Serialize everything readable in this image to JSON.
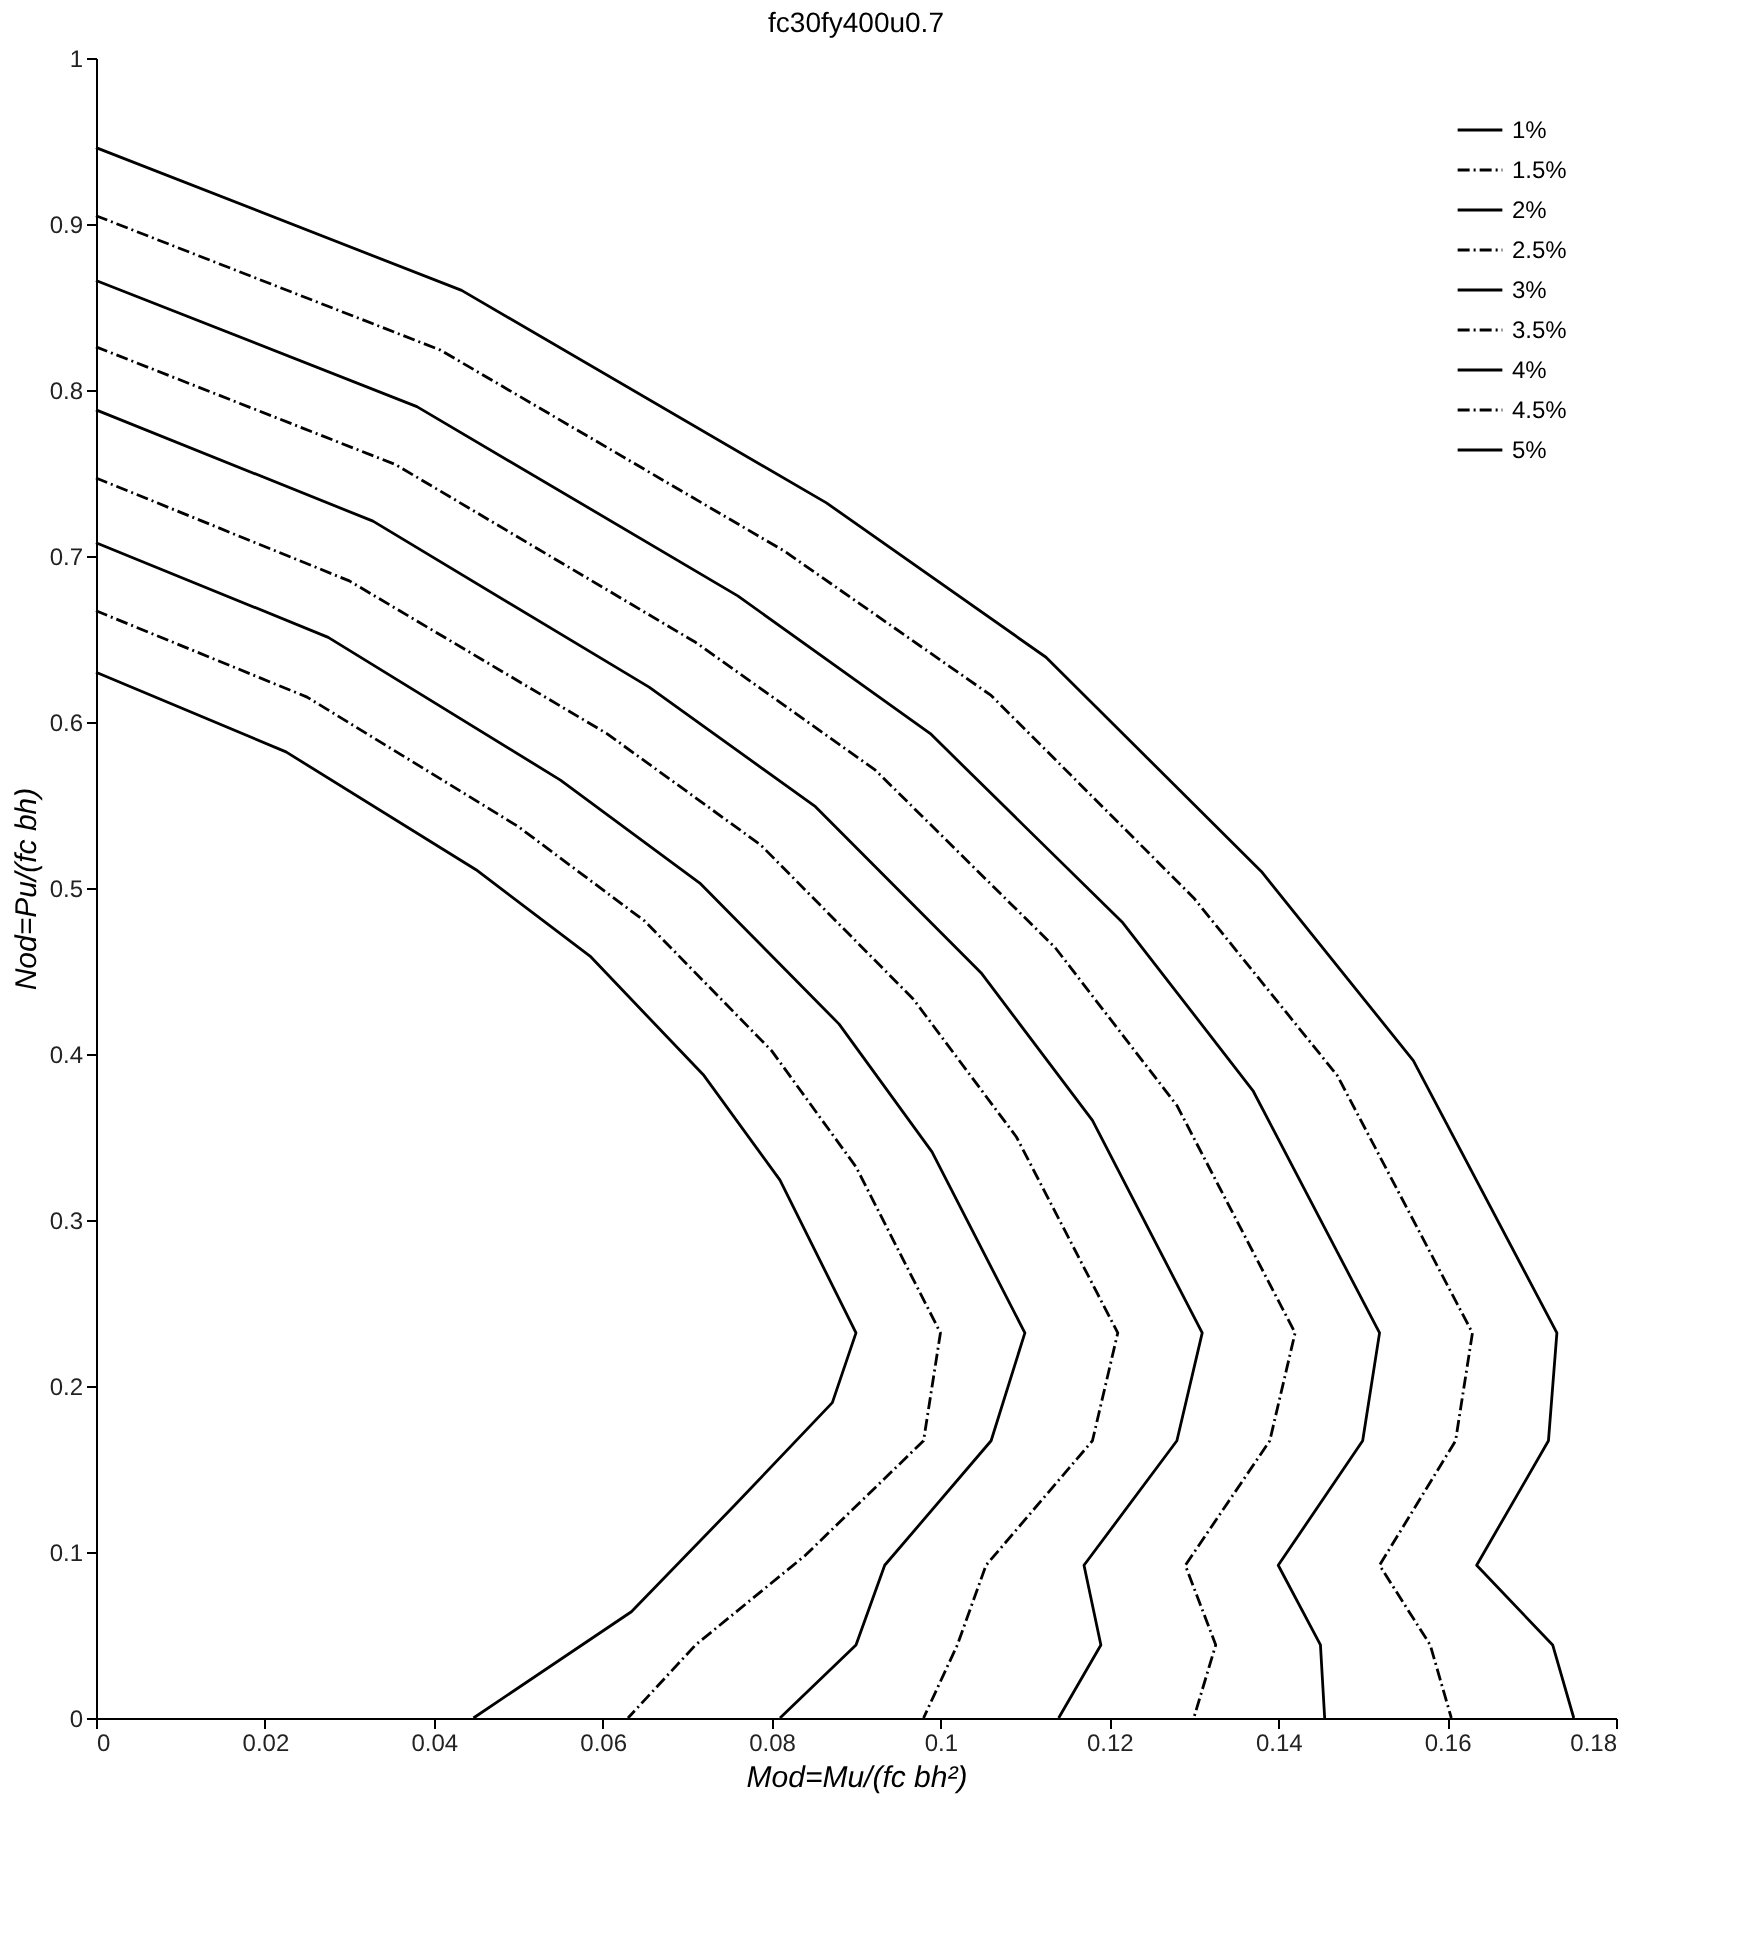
{
  "chart_data": {
    "type": "line",
    "title": "fc30fy400u0.7",
    "xlabel": "Mod=Mu/(fc bh²)",
    "ylabel": "Nod=Pu/(fc bh)",
    "xlim": [
      0,
      0.18
    ],
    "xticks": [
      0,
      0.02,
      0.04,
      0.06,
      0.08,
      0.1,
      0.12,
      0.14,
      0.16,
      0.18
    ],
    "ylim": [
      0,
      1
    ],
    "yticks": [
      0,
      0.1,
      0.2,
      0.3,
      0.4,
      0.5,
      0.6,
      0.7,
      0.8,
      0.9,
      1
    ],
    "grid": false,
    "legend": "top right",
    "marker": "none",
    "series": [
      {
        "name": "1%",
        "color": "#000000",
        "line_style": "solid",
        "x": [
          0,
          0.0225,
          0.045,
          0.0585,
          0.072,
          0.081,
          0.09,
          0.0872,
          0.0756,
          0.0634,
          0.0447
        ],
        "values": [
          0.63,
          0.582,
          0.511,
          0.459,
          0.387,
          0.324,
          0.232,
          0.19,
          0.128,
          0.064,
          0
        ]
      },
      {
        "name": "1.5%",
        "color": "#000000",
        "line_style": "dashed",
        "x": [
          0,
          0.025,
          0.05,
          0.065,
          0.08,
          0.09,
          0.1,
          0.098,
          0.084,
          0.071,
          0.063
        ],
        "values": [
          0.667,
          0.615,
          0.537,
          0.48,
          0.402,
          0.332,
          0.232,
          0.167,
          0.098,
          0.044,
          0
        ]
      },
      {
        "name": "2%",
        "color": "#000000",
        "line_style": "solid",
        "x": [
          0,
          0.0275,
          0.055,
          0.0715,
          0.088,
          0.099,
          0.11,
          0.106,
          0.0934,
          0.09,
          0.081
        ],
        "values": [
          0.708,
          0.651,
          0.565,
          0.503,
          0.418,
          0.341,
          0.232,
          0.167,
          0.092,
          0.044,
          0
        ]
      },
      {
        "name": "2.5%",
        "color": "#000000",
        "line_style": "dashed",
        "x": [
          0,
          0.03,
          0.0605,
          0.0787,
          0.0968,
          0.109,
          0.121,
          0.118,
          0.1054,
          0.102,
          0.098
        ],
        "values": [
          0.747,
          0.685,
          0.593,
          0.526,
          0.433,
          0.35,
          0.232,
          0.167,
          0.092,
          0.044,
          0
        ]
      },
      {
        "name": "3%",
        "color": "#000000",
        "line_style": "solid",
        "x": [
          0,
          0.0328,
          0.0655,
          0.0852,
          0.1048,
          0.118,
          0.131,
          0.128,
          0.117,
          0.119,
          0.114
        ],
        "values": [
          0.788,
          0.721,
          0.621,
          0.549,
          0.449,
          0.36,
          0.232,
          0.167,
          0.092,
          0.044,
          0
        ]
      },
      {
        "name": "3.5%",
        "color": "#000000",
        "line_style": "dashed",
        "x": [
          0,
          0.0355,
          0.071,
          0.0923,
          0.1136,
          0.128,
          0.142,
          0.139,
          0.129,
          0.1326,
          0.13
        ],
        "values": [
          0.826,
          0.755,
          0.648,
          0.571,
          0.464,
          0.369,
          0.232,
          0.167,
          0.092,
          0.044,
          0
        ]
      },
      {
        "name": "4%",
        "color": "#000000",
        "line_style": "solid",
        "x": [
          0,
          0.038,
          0.076,
          0.0988,
          0.1216,
          0.137,
          0.152,
          0.15,
          0.14,
          0.145,
          0.1455
        ],
        "values": [
          0.866,
          0.79,
          0.676,
          0.593,
          0.479,
          0.378,
          0.232,
          0.167,
          0.092,
          0.044,
          0
        ]
      },
      {
        "name": "4.5%",
        "color": "#000000",
        "line_style": "dashed",
        "x": [
          0,
          0.0408,
          0.0815,
          0.106,
          0.13,
          0.147,
          0.163,
          0.161,
          0.152,
          0.158,
          0.1605
        ],
        "values": [
          0.905,
          0.824,
          0.703,
          0.616,
          0.494,
          0.387,
          0.232,
          0.167,
          0.092,
          0.044,
          0
        ]
      },
      {
        "name": "5%",
        "color": "#000000",
        "line_style": "solid",
        "x": [
          0,
          0.0433,
          0.0865,
          0.1125,
          0.138,
          0.156,
          0.173,
          0.172,
          0.1635,
          0.1725,
          0.175
        ],
        "values": [
          0.946,
          0.86,
          0.732,
          0.639,
          0.51,
          0.396,
          0.232,
          0.167,
          0.092,
          0.044,
          0
        ]
      }
    ]
  }
}
